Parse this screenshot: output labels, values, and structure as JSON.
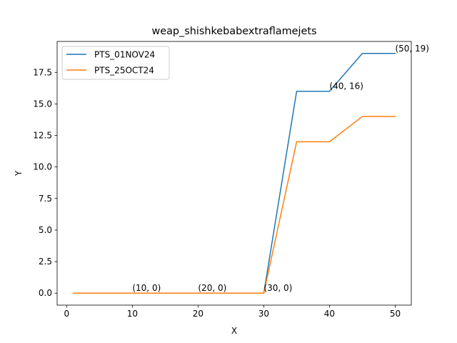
{
  "chart_data": {
    "type": "line",
    "title": "weap_shishkebabextraflamejets",
    "xlabel": "X",
    "ylabel": "Y",
    "xlim": [
      -1.45,
      52.45
    ],
    "ylim": [
      -0.95,
      19.95
    ],
    "xticks": [
      0,
      10,
      20,
      30,
      40,
      50
    ],
    "xtick_labels": [
      "0",
      "10",
      "20",
      "30",
      "40",
      "50"
    ],
    "yticks": [
      0.0,
      2.5,
      5.0,
      7.5,
      10.0,
      12.5,
      15.0,
      17.5
    ],
    "ytick_labels": [
      "0.0",
      "2.5",
      "5.0",
      "7.5",
      "10.0",
      "12.5",
      "15.0",
      "17.5"
    ],
    "grid": false,
    "legend_position": "upper left",
    "series": [
      {
        "name": "PTS_01NOV24",
        "color": "#1f77b4",
        "x": [
          1,
          5,
          10,
          15,
          20,
          25,
          30,
          35,
          40,
          45,
          50
        ],
        "y": [
          0,
          0,
          0,
          0,
          0,
          0,
          0,
          16,
          16,
          19,
          19
        ]
      },
      {
        "name": "PTS_25OCT24",
        "color": "#ff7f0e",
        "x": [
          1,
          5,
          10,
          15,
          20,
          25,
          30,
          35,
          40,
          45,
          50
        ],
        "y": [
          0,
          0,
          0,
          0,
          0,
          0,
          0,
          12,
          12,
          14,
          14
        ]
      }
    ],
    "annotations": [
      {
        "text": "(10, 0)",
        "x": 10,
        "y": 0
      },
      {
        "text": "(20, 0)",
        "x": 20,
        "y": 0
      },
      {
        "text": "(30, 0)",
        "x": 30,
        "y": 0
      },
      {
        "text": "(40, 16)",
        "x": 40,
        "y": 16
      },
      {
        "text": "(50, 19)",
        "x": 50,
        "y": 19
      }
    ]
  }
}
